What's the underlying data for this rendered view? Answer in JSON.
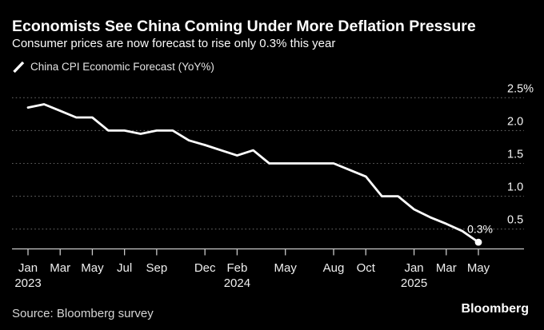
{
  "header": {
    "title": "Economists See China Coming Under More Deflation Pressure",
    "subtitle": "Consumer prices are now forecast to rise only 0.3% this year"
  },
  "legend": {
    "series_label": "China CPI Economic Forecast (YoY%)"
  },
  "footer": {
    "source": "Source: Bloomberg survey",
    "brand": "Bloomberg"
  },
  "colors": {
    "background": "#000000",
    "title_text": "#ffffff",
    "line": "#ffffff",
    "gridline": "#616161",
    "axis": "#c9c9c9",
    "tick_label": "#efefef",
    "y_label": "#f5f5f5",
    "source_text": "#d6d6d6"
  },
  "chart_data": {
    "type": "line",
    "title": "China CPI Economic Forecast (YoY%)",
    "ylabel": "YoY%",
    "legend_position": "top-left",
    "grid": "horizontal dotted",
    "x": [
      "Jan 2023",
      "Feb 2023",
      "Mar 2023",
      "Apr 2023",
      "May 2023",
      "Jun 2023",
      "Jul 2023",
      "Aug 2023",
      "Sep 2023",
      "Oct 2023",
      "Nov 2023",
      "Dec 2023",
      "Jan 2024",
      "Feb 2024",
      "Mar 2024",
      "Apr 2024",
      "May 2024",
      "Jun 2024",
      "Jul 2024",
      "Aug 2024",
      "Sep 2024",
      "Oct 2024",
      "Nov 2024",
      "Dec 2024",
      "Jan 2025",
      "Feb 2025",
      "Mar 2025",
      "Apr 2025",
      "May 2025"
    ],
    "values": [
      2.35,
      2.4,
      2.3,
      2.2,
      2.2,
      2.0,
      2.0,
      1.95,
      2.0,
      2.0,
      1.85,
      1.78,
      1.7,
      1.62,
      1.7,
      1.5,
      1.5,
      1.5,
      1.5,
      1.5,
      1.4,
      1.3,
      1.0,
      1.0,
      0.8,
      0.68,
      0.58,
      0.47,
      0.3
    ],
    "end_point_label": "0.3%",
    "y_axis": {
      "side": "right",
      "tick_values": [
        2.5,
        2.0,
        1.5,
        1.0,
        0.5
      ],
      "tick_labels": [
        "2.5%",
        "2.0",
        "1.5",
        "1.0",
        "0.5"
      ]
    },
    "x_axis": {
      "tick_month_indices": [
        0,
        2,
        4,
        6,
        8,
        11,
        13,
        16,
        19,
        21,
        24,
        26,
        28
      ],
      "tick_labels": [
        "Jan",
        "Mar",
        "May",
        "Jul",
        "Sep",
        "Dec",
        "Feb",
        "May",
        "Aug",
        "Oct",
        "Jan",
        "Mar",
        "May"
      ],
      "year_labels": [
        {
          "text": "2023",
          "month_index": 0
        },
        {
          "text": "2024",
          "month_index": 13
        },
        {
          "text": "2025",
          "month_index": 24
        }
      ]
    }
  }
}
